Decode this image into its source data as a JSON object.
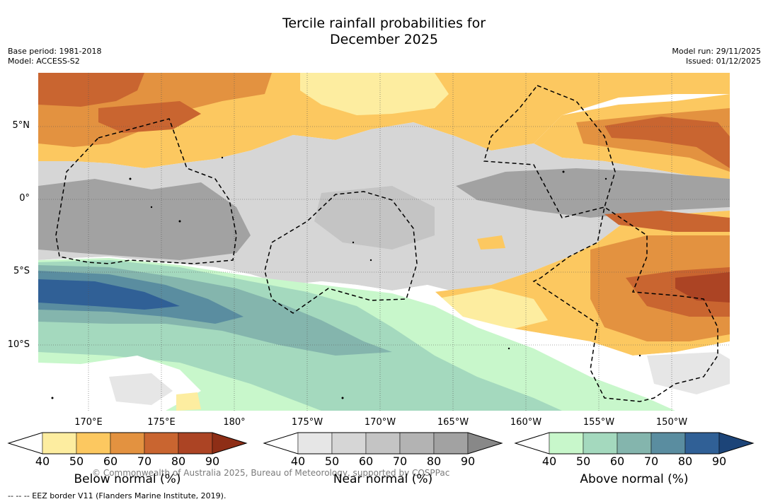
{
  "title_line1": "Tercile rainfall probabilities for",
  "title_line2": "December 2025",
  "meta_left": {
    "base_period": "Base period: 1981-2018",
    "model": "Model: ACCESS-S2"
  },
  "meta_right": {
    "model_run": "Model run: 29/11/2025",
    "issued": "Issued: 01/12/2025"
  },
  "latitude_labels": [
    "5°N",
    "0°",
    "5°S",
    "10°S"
  ],
  "longitude_labels": [
    "170°E",
    "175°E",
    "180°",
    "175°W",
    "170°W",
    "165°W",
    "160°W",
    "155°W",
    "150°W"
  ],
  "copyright": "© Commonwealth of Australia 2025, Bureau of Meteorology, supported by COSPPac",
  "footer": "-- -- -- EEZ border V11 (Flanders Marine Institute, 2019).",
  "colorbars": [
    {
      "title": "Below normal (%)",
      "ticks": [
        "40",
        "50",
        "60",
        "70",
        "80",
        "90"
      ],
      "colors": [
        "#ffffff",
        "#fdeda0",
        "#fcc860",
        "#e39240",
        "#c96530",
        "#ac4424",
        "#8e2e16"
      ]
    },
    {
      "title": "Near normal (%)",
      "ticks": [
        "40",
        "50",
        "60",
        "70",
        "80",
        "90"
      ],
      "colors": [
        "#ffffff",
        "#e6e6e6",
        "#d6d6d6",
        "#c4c4c4",
        "#b3b3b3",
        "#a2a2a2",
        "#888888"
      ]
    },
    {
      "title": "Above normal (%)",
      "ticks": [
        "40",
        "50",
        "60",
        "70",
        "80",
        "90"
      ],
      "colors": [
        "#ffffff",
        "#c8f7cb",
        "#a4d9be",
        "#84b5ad",
        "#5a8da0",
        "#306096",
        "#1c4478"
      ]
    }
  ]
}
